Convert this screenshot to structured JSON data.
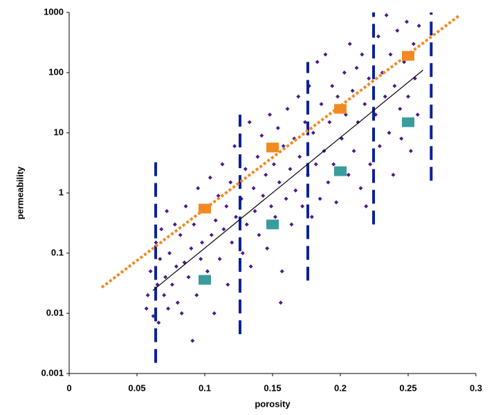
{
  "chart_data": {
    "type": "scatter",
    "xlabel": "porosity",
    "ylabel": "permeability",
    "xlim": [
      0,
      0.3
    ],
    "xticks": [
      0,
      0.05,
      0.1,
      0.15,
      0.2,
      0.25,
      0.3
    ],
    "ylim": [
      0.001,
      1000
    ],
    "yticks": [
      0.001,
      0.01,
      0.1,
      1,
      10,
      100,
      1000
    ],
    "ylog": true,
    "grid": false,
    "series": [
      {
        "color": "#4b1a8a",
        "marker": "diamond",
        "x": [
          0.057,
          0.058,
          0.06,
          0.062,
          0.064,
          0.065,
          0.066,
          0.067,
          0.068,
          0.07,
          0.071,
          0.072,
          0.073,
          0.074,
          0.076,
          0.078,
          0.079,
          0.08,
          0.082,
          0.083,
          0.085,
          0.086,
          0.088,
          0.09,
          0.091,
          0.092,
          0.094,
          0.095,
          0.097,
          0.098,
          0.101,
          0.102,
          0.104,
          0.105,
          0.107,
          0.108,
          0.11,
          0.111,
          0.113,
          0.114,
          0.116,
          0.117,
          0.119,
          0.12,
          0.122,
          0.123,
          0.127,
          0.128,
          0.13,
          0.131,
          0.133,
          0.134,
          0.136,
          0.137,
          0.139,
          0.14,
          0.142,
          0.143,
          0.145,
          0.146,
          0.148,
          0.149,
          0.151,
          0.152,
          0.154,
          0.155,
          0.157,
          0.158,
          0.16,
          0.161,
          0.163,
          0.164,
          0.166,
          0.167,
          0.169,
          0.17,
          0.172,
          0.174,
          0.156,
          0.176,
          0.177,
          0.179,
          0.18,
          0.182,
          0.183,
          0.185,
          0.186,
          0.188,
          0.189,
          0.191,
          0.192,
          0.194,
          0.195,
          0.197,
          0.198,
          0.201,
          0.203,
          0.204,
          0.206,
          0.207,
          0.209,
          0.21,
          0.212,
          0.213,
          0.215,
          0.216,
          0.218,
          0.219,
          0.221,
          0.222,
          0.226,
          0.228,
          0.229,
          0.231,
          0.233,
          0.234,
          0.236,
          0.237,
          0.239,
          0.24,
          0.242,
          0.244,
          0.245,
          0.247,
          0.249,
          0.25,
          0.252,
          0.254,
          0.255,
          0.257,
          0.258
        ],
        "values": [
          0.012,
          0.02,
          0.05,
          0.009,
          0.15,
          0.03,
          0.007,
          0.08,
          0.25,
          0.02,
          0.04,
          0.5,
          0.012,
          0.1,
          0.03,
          0.3,
          0.06,
          0.015,
          0.2,
          0.01,
          0.07,
          0.6,
          0.04,
          0.12,
          0.0035,
          0.3,
          0.02,
          1.2,
          0.08,
          0.15,
          0.5,
          0.05,
          1.8,
          0.2,
          0.01,
          0.35,
          0.9,
          0.08,
          3,
          0.25,
          0.6,
          0.03,
          1.5,
          0.15,
          6,
          0.4,
          0.8,
          0.1,
          2.5,
          0.3,
          15,
          0.06,
          1.2,
          0.5,
          4,
          0.2,
          9,
          0.9,
          2,
          0.12,
          20,
          0.6,
          3,
          0.4,
          12,
          1.5,
          0.05,
          6,
          0.8,
          25,
          2.5,
          0.3,
          8,
          1.1,
          40,
          4,
          0.6,
          15,
          0.015,
          2,
          60,
          0.4,
          10,
          3,
          150,
          0.8,
          30,
          5,
          200,
          1.5,
          15,
          60,
          3,
          0.7,
          40,
          8,
          100,
          20,
          2,
          300,
          50,
          5,
          120,
          15,
          1.2,
          200,
          30,
          0.6,
          80,
          3,
          20,
          400,
          6,
          100,
          40,
          900,
          10,
          200,
          2,
          60,
          500,
          25,
          8,
          150,
          700,
          40,
          5,
          300,
          80,
          20,
          600
        ]
      },
      {
        "color": "#0a1f9c",
        "marker": "none",
        "line": "dashed",
        "x": [
          0.0638,
          0.0638
        ],
        "values": [
          0.0015,
          3.5
        ]
      },
      {
        "color": "#0a1f9c",
        "marker": "none",
        "line": "dashed",
        "x": [
          0.126,
          0.126
        ],
        "values": [
          0.0045,
          20
        ]
      },
      {
        "color": "#0a1f9c",
        "marker": "none",
        "line": "dashed",
        "x": [
          0.176,
          0.176
        ],
        "values": [
          0.035,
          150
        ]
      },
      {
        "color": "#0a1f9c",
        "marker": "none",
        "line": "dashed",
        "x": [
          0.2245,
          0.2245
        ],
        "values": [
          0.3,
          1000
        ]
      },
      {
        "color": "#0a1f9c",
        "marker": "none",
        "line": "dashed",
        "x": [
          0.267,
          0.267
        ],
        "values": [
          1.6,
          1000
        ]
      },
      {
        "color": "#f28a22",
        "marker": "none",
        "line": "dotted",
        "x": [
          0.024,
          0.288
        ],
        "values": [
          0.027,
          900
        ]
      },
      {
        "color": "#000000",
        "marker": "none",
        "line": "solid",
        "x": [
          0.0617,
          0.261
        ],
        "values": [
          0.024,
          110
        ]
      },
      {
        "color": "#f28a22",
        "marker": "square",
        "x": [
          0.1,
          0.15,
          0.2,
          0.25
        ],
        "values": [
          0.55,
          5.7,
          25,
          190
        ]
      },
      {
        "color": "#3a9c9c",
        "marker": "square",
        "x": [
          0.1,
          0.15,
          0.2,
          0.25
        ],
        "values": [
          0.036,
          0.3,
          2.3,
          15
        ]
      }
    ]
  }
}
